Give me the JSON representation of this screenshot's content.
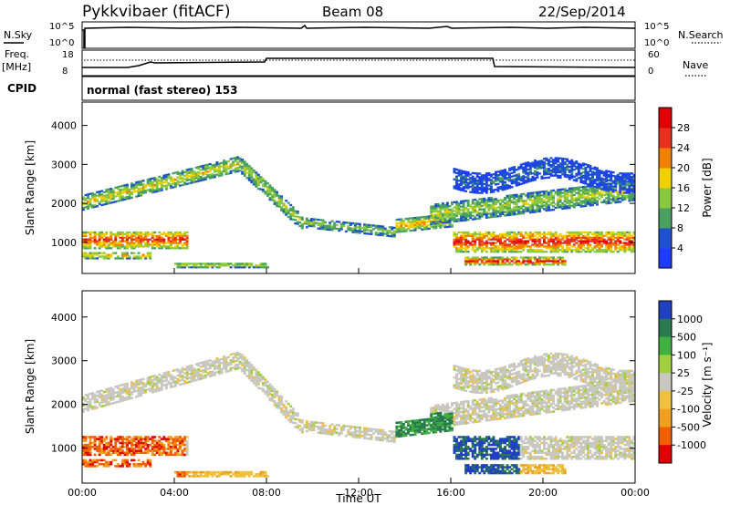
{
  "header": {
    "station": "Pykkvibaer (fitACF)",
    "beam": "Beam 08",
    "date": "22/Sep/2014"
  },
  "strip_labels": {
    "nsky": "N.Sky",
    "nsearch": "N.Search",
    "freq": "Freq.",
    "freq_unit": "[MHz]",
    "nave": "Nave",
    "cpid": "CPID",
    "cpid_value": "normal (fast stereo) 153",
    "noise_ticks": [
      "10^5",
      "10^0"
    ],
    "freq_ticks": [
      "18",
      "8"
    ],
    "nave_ticks": [
      "60",
      "0"
    ]
  },
  "chart_data": [
    {
      "type": "heatmap",
      "name": "power",
      "ylabel": "Slant Range [km]",
      "xlabel": "",
      "y_ticks": [
        "1000",
        "2000",
        "3000",
        "4000"
      ],
      "ylim": [
        200,
        4600
      ],
      "colorbar_label": "Power [dB]",
      "colorbar_ticks": [
        "4",
        "8",
        "12",
        "16",
        "20",
        "24",
        "28"
      ],
      "colorbar_colors": [
        "#1e3cff",
        "#1e50d0",
        "#4aa060",
        "#8ac840",
        "#f0d000",
        "#f08000",
        "#e83020",
        "#e00000"
      ]
    },
    {
      "type": "heatmap",
      "name": "velocity",
      "ylabel": "Slant Range [km]",
      "xlabel": "Time UT",
      "x_ticks": [
        "00:00",
        "04:00",
        "08:00",
        "12:00",
        "16:00",
        "20:00",
        "00:00"
      ],
      "xlim_hours": [
        0,
        24
      ],
      "y_ticks": [
        "1000",
        "2000",
        "3000",
        "4000"
      ],
      "ylim": [
        200,
        4600
      ],
      "colorbar_label": "Velocity [m s⁻¹]",
      "colorbar_ticks": [
        "1000",
        "500",
        "100",
        "25",
        "-25",
        "-100",
        "-500",
        "-1000"
      ],
      "colorbar_colors": [
        "#2040c0",
        "#2a7a50",
        "#40b040",
        "#a0d040",
        "#c8c8c0",
        "#f0c040",
        "#f0a020",
        "#f06000",
        "#e00000"
      ]
    }
  ]
}
